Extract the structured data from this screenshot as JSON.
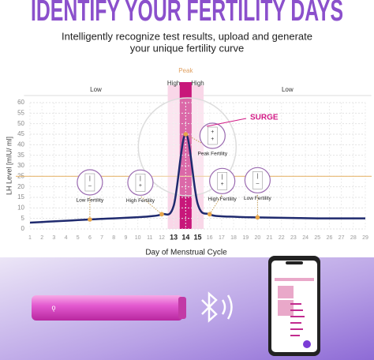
{
  "header": {
    "title": "IDENTIFY YOUR FERTILITY DAYS",
    "subtitle_lines": [
      "Intelligently recognize test results, upload and generate",
      "your unique fertility curve"
    ]
  },
  "chart_data": {
    "type": "line",
    "y_label": "LH Level [mIU/ ml]",
    "x_label": "Day of Menstrual Cycle",
    "x": [
      1,
      2,
      3,
      4,
      5,
      6,
      7,
      8,
      9,
      10,
      11,
      12,
      13,
      14,
      15,
      16,
      17,
      18,
      19,
      20,
      21,
      22,
      23,
      24,
      25,
      26,
      27,
      28,
      29
    ],
    "series": [
      {
        "color": "#1f2a6e",
        "values": [
          3,
          3.3,
          3.6,
          3.9,
          4.2,
          4.5,
          4.8,
          5,
          5.3,
          5.6,
          6,
          7,
          11,
          45,
          12,
          7,
          6,
          5.8,
          5.6,
          5.5,
          5.4,
          5.3,
          5.2,
          5.1,
          5,
          5,
          5,
          5,
          5
        ]
      }
    ],
    "xlim": [
      1,
      29
    ],
    "ylim": [
      0,
      60
    ],
    "xticks": [
      1,
      2,
      3,
      4,
      5,
      6,
      7,
      8,
      9,
      10,
      11,
      12,
      13,
      14,
      15,
      16,
      17,
      18,
      19,
      20,
      21,
      22,
      23,
      24,
      25,
      26,
      27,
      28,
      29
    ],
    "yticks": [
      0,
      5,
      10,
      15,
      20,
      25,
      30,
      35,
      40,
      45,
      50,
      55,
      60
    ],
    "grid": true,
    "reference_line": {
      "value": 25,
      "color": "#e7b872"
    },
    "phases": [
      {
        "label": "Low",
        "from": 1,
        "to": 12,
        "color": "none"
      },
      {
        "label": "High",
        "from": 13,
        "to": 13,
        "color": "#f6c6de"
      },
      {
        "label": "Peak",
        "from": 14,
        "to": 14,
        "color": "#c8177a"
      },
      {
        "label": "High",
        "from": 15,
        "to": 15,
        "color": "#f6c6de"
      },
      {
        "label": "Low",
        "from": 16,
        "to": 29,
        "color": "none"
      }
    ],
    "surge_label": "SURGE",
    "annotations": [
      {
        "label": "Low Fertility",
        "day": 6,
        "strip": [
          "|",
          "–"
        ]
      },
      {
        "label": "High Fertility",
        "day": 12,
        "strip": [
          "|",
          "+"
        ]
      },
      {
        "label": "Peak Fertility",
        "day": 14,
        "strip": [
          "+",
          "+"
        ]
      },
      {
        "label": "High Fertility",
        "day": 16,
        "strip": [
          "|",
          "+"
        ]
      },
      {
        "label": "Low Fertility",
        "day": 20,
        "strip": [
          "|",
          "–"
        ]
      }
    ]
  }
}
